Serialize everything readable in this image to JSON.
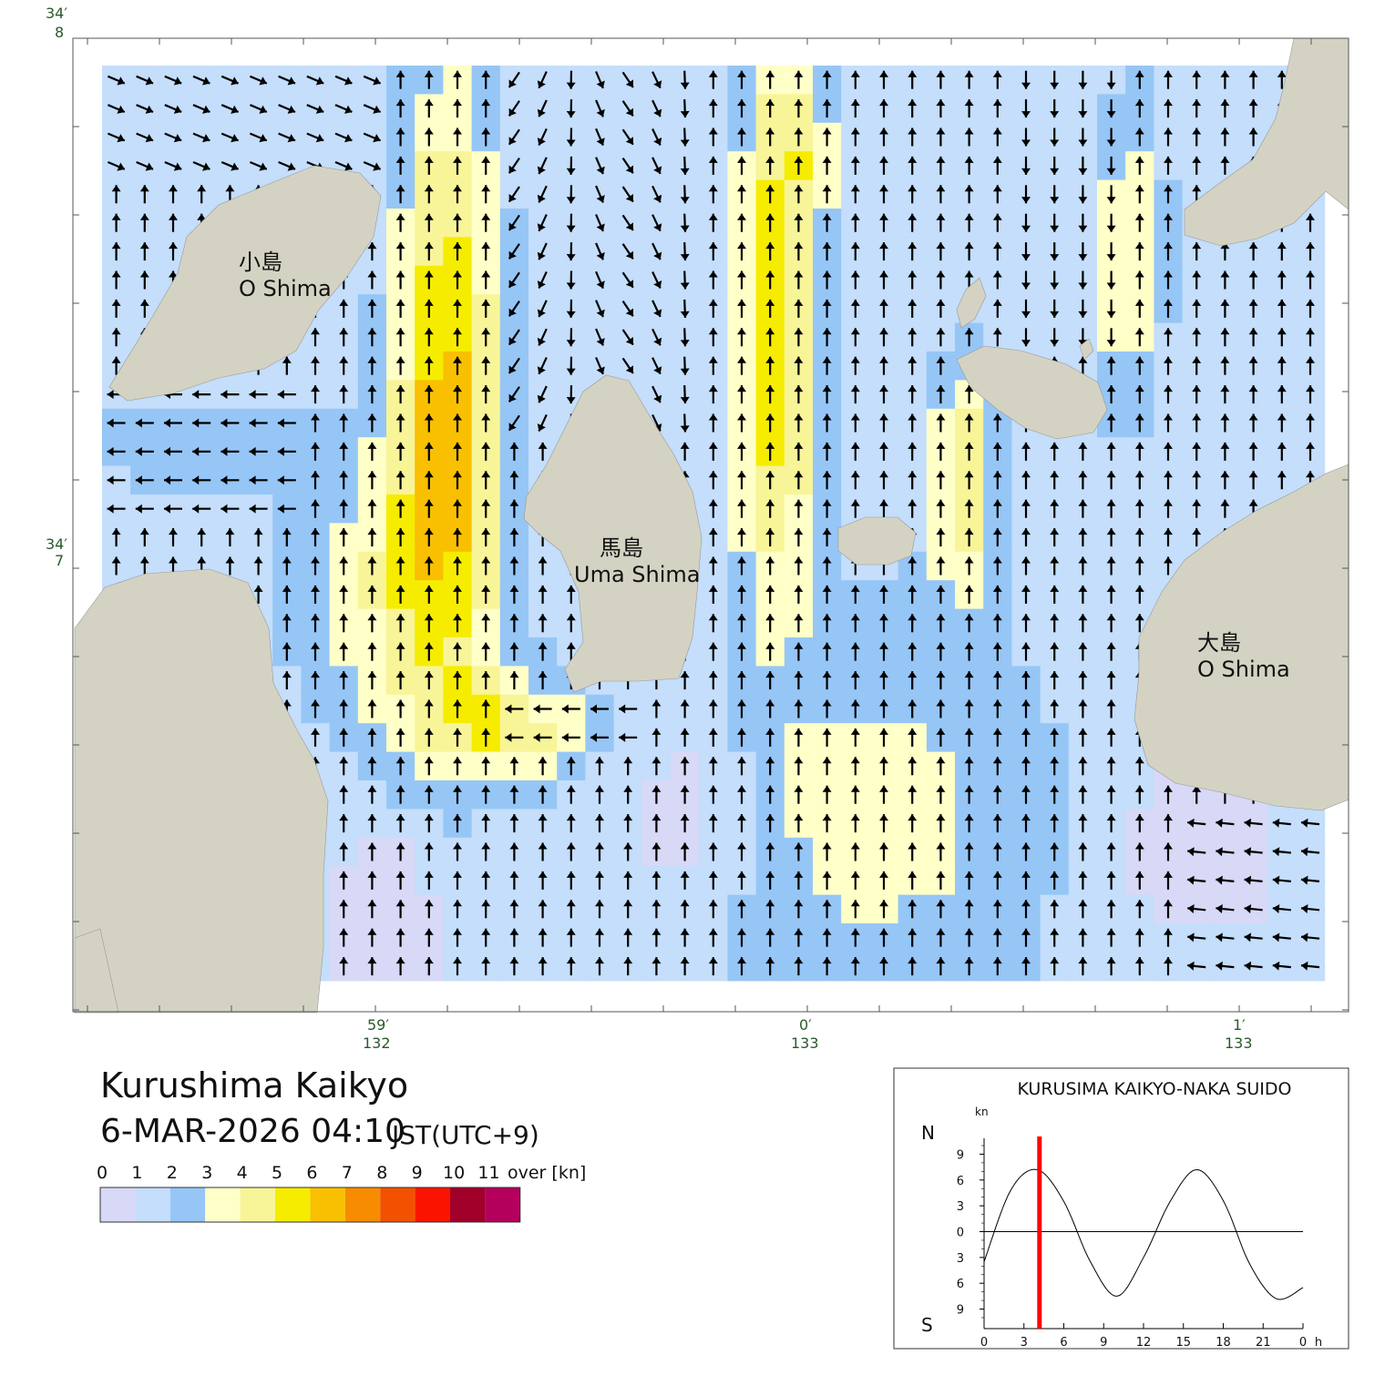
{
  "title": "Kurushima Kaikyo",
  "datetime": "6-MAR-2026 04:10",
  "timezone": "JST(UTC+9)",
  "legend": {
    "labels": [
      "0",
      "1",
      "2",
      "3",
      "4",
      "5",
      "6",
      "7",
      "8",
      "9",
      "10",
      "11"
    ],
    "over_label": "over",
    "unit": "[kn]",
    "colors": [
      "#d8d8f7",
      "#c4defb",
      "#96c6f6",
      "#ffffc8",
      "#f8f498",
      "#f6ec00",
      "#f8c000",
      "#f78c00",
      "#f25200",
      "#fa1400",
      "#a0002a",
      "#b4005c"
    ]
  },
  "axes": {
    "lat_labels": [
      {
        "deg": "34",
        "min": "8"
      },
      {
        "deg": "34",
        "min": "7"
      }
    ],
    "lon_labels": [
      {
        "deg": "132",
        "min": "59"
      },
      {
        "deg": "133",
        "min": "0"
      },
      {
        "deg": "133",
        "min": "1"
      }
    ]
  },
  "places": {
    "koshima_jp": "小島",
    "koshima_en": "O Shima",
    "umashima_jp": "馬島",
    "umashima_en": "Uma Shima",
    "oshima_jp": "大島",
    "oshima_en": "O Shima"
  },
  "land_color": "#d4d3c3",
  "tide_chart": {
    "title": "KURUSIMA KAIKYO-NAKA SUIDO",
    "unit": "kn",
    "north_label": "N",
    "south_label": "S",
    "y_tick_labels": [
      "9",
      "6",
      "3",
      "0",
      "3",
      "6",
      "9"
    ],
    "x_tick_labels": [
      "0",
      "3",
      "6",
      "9",
      "12",
      "15",
      "18",
      "21",
      "0"
    ],
    "x_unit": "h",
    "chart_data": {
      "type": "line",
      "x": [
        0,
        2,
        4,
        6,
        8,
        10,
        12,
        14,
        16,
        18,
        20,
        22,
        24
      ],
      "values": [
        -3.5,
        4.8,
        7.2,
        3.5,
        -3.5,
        -7.5,
        -3.0,
        3.5,
        7.2,
        3.6,
        -3.8,
        -7.8,
        -6.5
      ],
      "current_time_hours": 4.17,
      "ylim": [
        -10,
        10
      ],
      "xlim": [
        0,
        24
      ],
      "line_color": "#000000",
      "marker_color": "#ff0000"
    }
  }
}
